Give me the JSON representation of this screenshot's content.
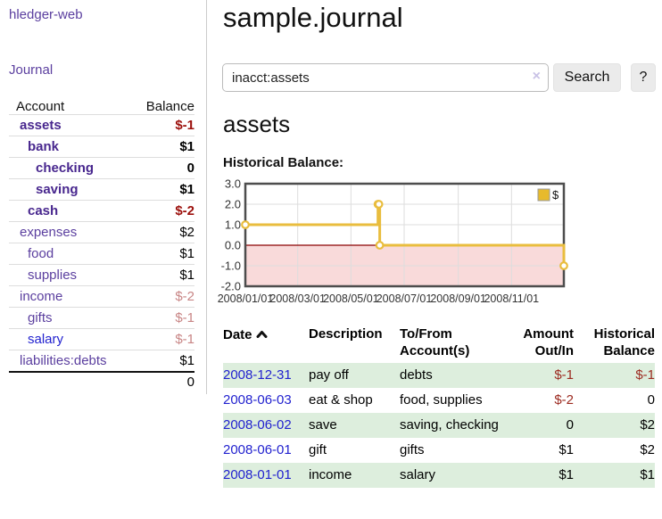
{
  "app": {
    "brand": "hledger-web",
    "nav_journal": "Journal"
  },
  "sidebar": {
    "headers": {
      "account": "Account",
      "balance": "Balance"
    },
    "accounts": [
      {
        "name": "assets",
        "depth": 1,
        "bold": true,
        "balance": "$-1",
        "balance_style": "neg-strong"
      },
      {
        "name": "bank",
        "depth": 2,
        "bold": true,
        "balance": "$1",
        "balance_style": "normal"
      },
      {
        "name": "checking",
        "depth": 3,
        "bold": true,
        "balance": "0",
        "balance_style": "normal"
      },
      {
        "name": "saving",
        "depth": 3,
        "bold": true,
        "balance": "$1",
        "balance_style": "normal"
      },
      {
        "name": "cash",
        "depth": 2,
        "bold": true,
        "balance": "$-2",
        "balance_style": "neg-strong"
      },
      {
        "name": "expenses",
        "depth": 1,
        "bold": false,
        "balance": "$2",
        "balance_style": "normal"
      },
      {
        "name": "food",
        "depth": 2,
        "bold": false,
        "balance": "$1",
        "balance_style": "normal"
      },
      {
        "name": "supplies",
        "depth": 2,
        "bold": false,
        "balance": "$1",
        "balance_style": "normal"
      },
      {
        "name": "income",
        "depth": 1,
        "bold": false,
        "balance": "$-2",
        "balance_style": "neg-soft"
      },
      {
        "name": "gifts",
        "depth": 2,
        "bold": false,
        "balance": "$-1",
        "balance_style": "neg-soft"
      },
      {
        "name": "salary",
        "depth": 2,
        "bold": false,
        "balance": "$-1",
        "balance_style": "neg-soft",
        "name_style": "blue"
      },
      {
        "name": "liabilities:debts",
        "depth": 1,
        "bold": false,
        "balance": "$1",
        "balance_style": "normal"
      }
    ],
    "total": "0"
  },
  "main": {
    "title": "sample.journal",
    "search": {
      "value": "inacct:assets",
      "clear_icon": "×",
      "search_button": "Search",
      "help_button": "?"
    },
    "account_heading": "assets",
    "chart_label": "Historical Balance:"
  },
  "chart_data": {
    "type": "line",
    "step": true,
    "title": "Historical Balance",
    "series": [
      {
        "name": "$",
        "x": [
          "2008-01-01",
          "2008-06-01",
          "2008-06-02",
          "2008-06-03",
          "2008-12-31"
        ],
        "y": [
          1,
          2,
          2,
          0,
          -1
        ]
      }
    ],
    "x_domain": [
      "2008-01-01",
      "2008-12-31"
    ],
    "xticks": [
      "2008/01/01",
      "2008/03/01",
      "2008/05/01",
      "2008/07/01",
      "2008/09/01",
      "2008/11/01"
    ],
    "yticks": [
      3.0,
      2.0,
      1.0,
      0.0,
      -1.0,
      -2.0
    ],
    "ylim": [
      -2.0,
      3.0
    ],
    "grid": true,
    "legend": {
      "label": "$",
      "position": "top-right"
    },
    "colors": {
      "line": "#e9bd3e",
      "marker_fill": "#ffffff",
      "negative_region": "#f9dada",
      "zero_line": "#8b0000",
      "grid": "#dddddd",
      "border": "#4d4d4d",
      "legend_swatch": "#e7ba2c",
      "tick_text": "#333333"
    }
  },
  "register": {
    "headers": {
      "date": "Date",
      "description": "Description",
      "accounts": "To/From Account(s)",
      "amount": "Amount Out/In",
      "balance": "Historical Balance"
    },
    "rows": [
      {
        "date": "2008-12-31",
        "description": "pay off",
        "accounts": "debts",
        "amount": "$-1",
        "balance": "$-1"
      },
      {
        "date": "2008-06-03",
        "description": "eat & shop",
        "accounts": "food, supplies",
        "amount": "$-2",
        "balance": "0"
      },
      {
        "date": "2008-06-02",
        "description": "save",
        "accounts": "saving, checking",
        "amount": "0",
        "balance": "$2"
      },
      {
        "date": "2008-06-01",
        "description": "gift",
        "accounts": "gifts",
        "amount": "$1",
        "balance": "$2"
      },
      {
        "date": "2008-01-01",
        "description": "income",
        "accounts": "salary",
        "amount": "$1",
        "balance": "$1"
      }
    ]
  }
}
